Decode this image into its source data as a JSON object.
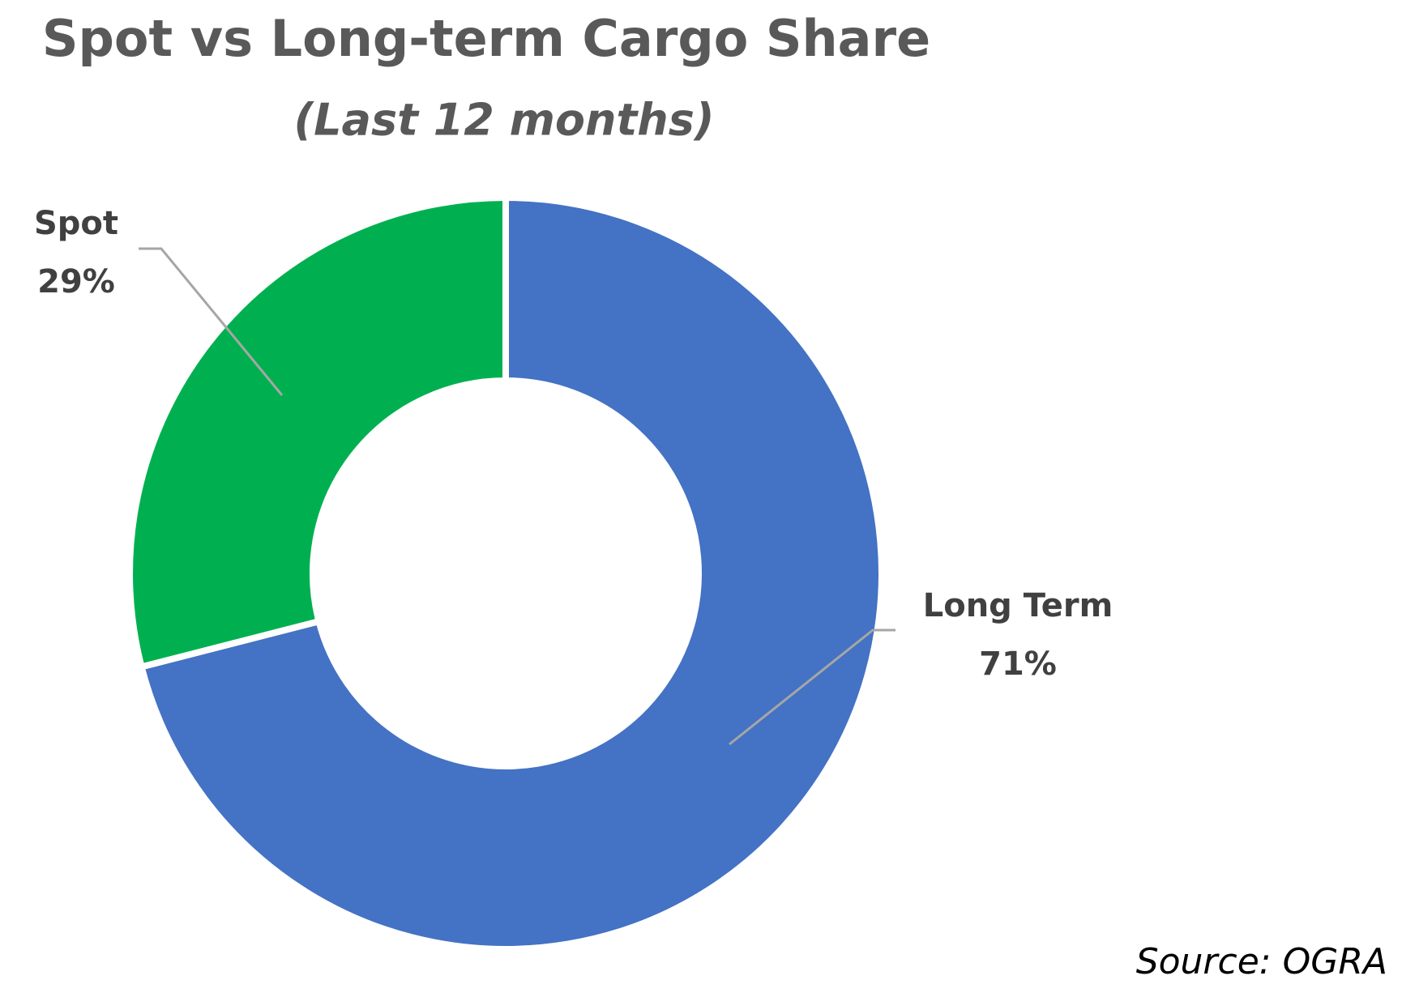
{
  "chart_data": {
    "type": "donut",
    "title": "Spot vs Long-term Cargo Share",
    "subtitle": "(Last 12 months)",
    "categories": [
      "Long Term",
      "Spot"
    ],
    "values": [
      71,
      29
    ],
    "value_labels": [
      "71%",
      "29%"
    ],
    "colors": [
      "#4472c4",
      "#00b050"
    ],
    "source": "Source: OGRA"
  }
}
